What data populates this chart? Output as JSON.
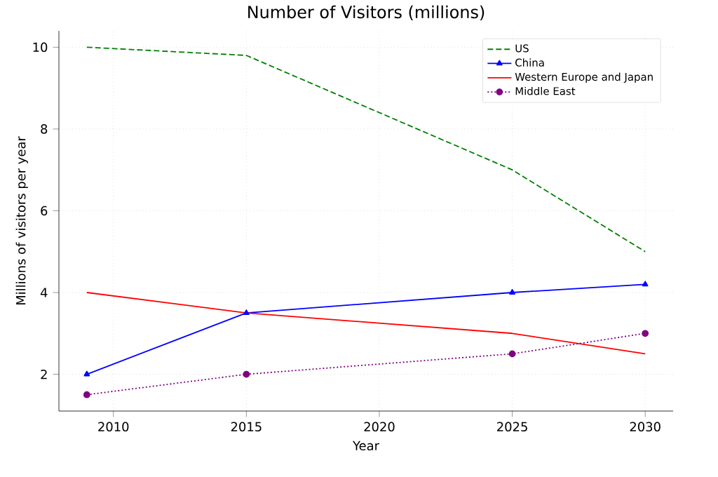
{
  "chart_data": {
    "type": "line",
    "title": "Number of Visitors (millions)",
    "xlabel": "Year",
    "ylabel": "Millions of visitors per year",
    "x": [
      2009,
      2015,
      2025,
      2030
    ],
    "series": [
      {
        "name": "US",
        "color": "#008000",
        "values": [
          10,
          9.8,
          7,
          5
        ],
        "line_style": "dashed",
        "marker": "none"
      },
      {
        "name": "China",
        "color": "#0000ff",
        "values": [
          2,
          3.5,
          4,
          4.2
        ],
        "line_style": "solid",
        "marker": "triangle"
      },
      {
        "name": "Western Europe and Japan",
        "color": "#ff0000",
        "values": [
          4,
          3.5,
          3,
          2.5
        ],
        "line_style": "solid",
        "marker": "none"
      },
      {
        "name": "Middle East",
        "color": "#800080",
        "values": [
          1.5,
          2,
          2.5,
          3
        ],
        "line_style": "dotted",
        "marker": "circle"
      }
    ],
    "xlim": [
      2007.95,
      2031.05
    ],
    "ylim": [
      1.1,
      10.4
    ],
    "xticks": [
      2010,
      2015,
      2020,
      2025,
      2030
    ],
    "yticks": [
      2,
      4,
      6,
      8,
      10
    ],
    "grid": true,
    "legend": "top right"
  }
}
